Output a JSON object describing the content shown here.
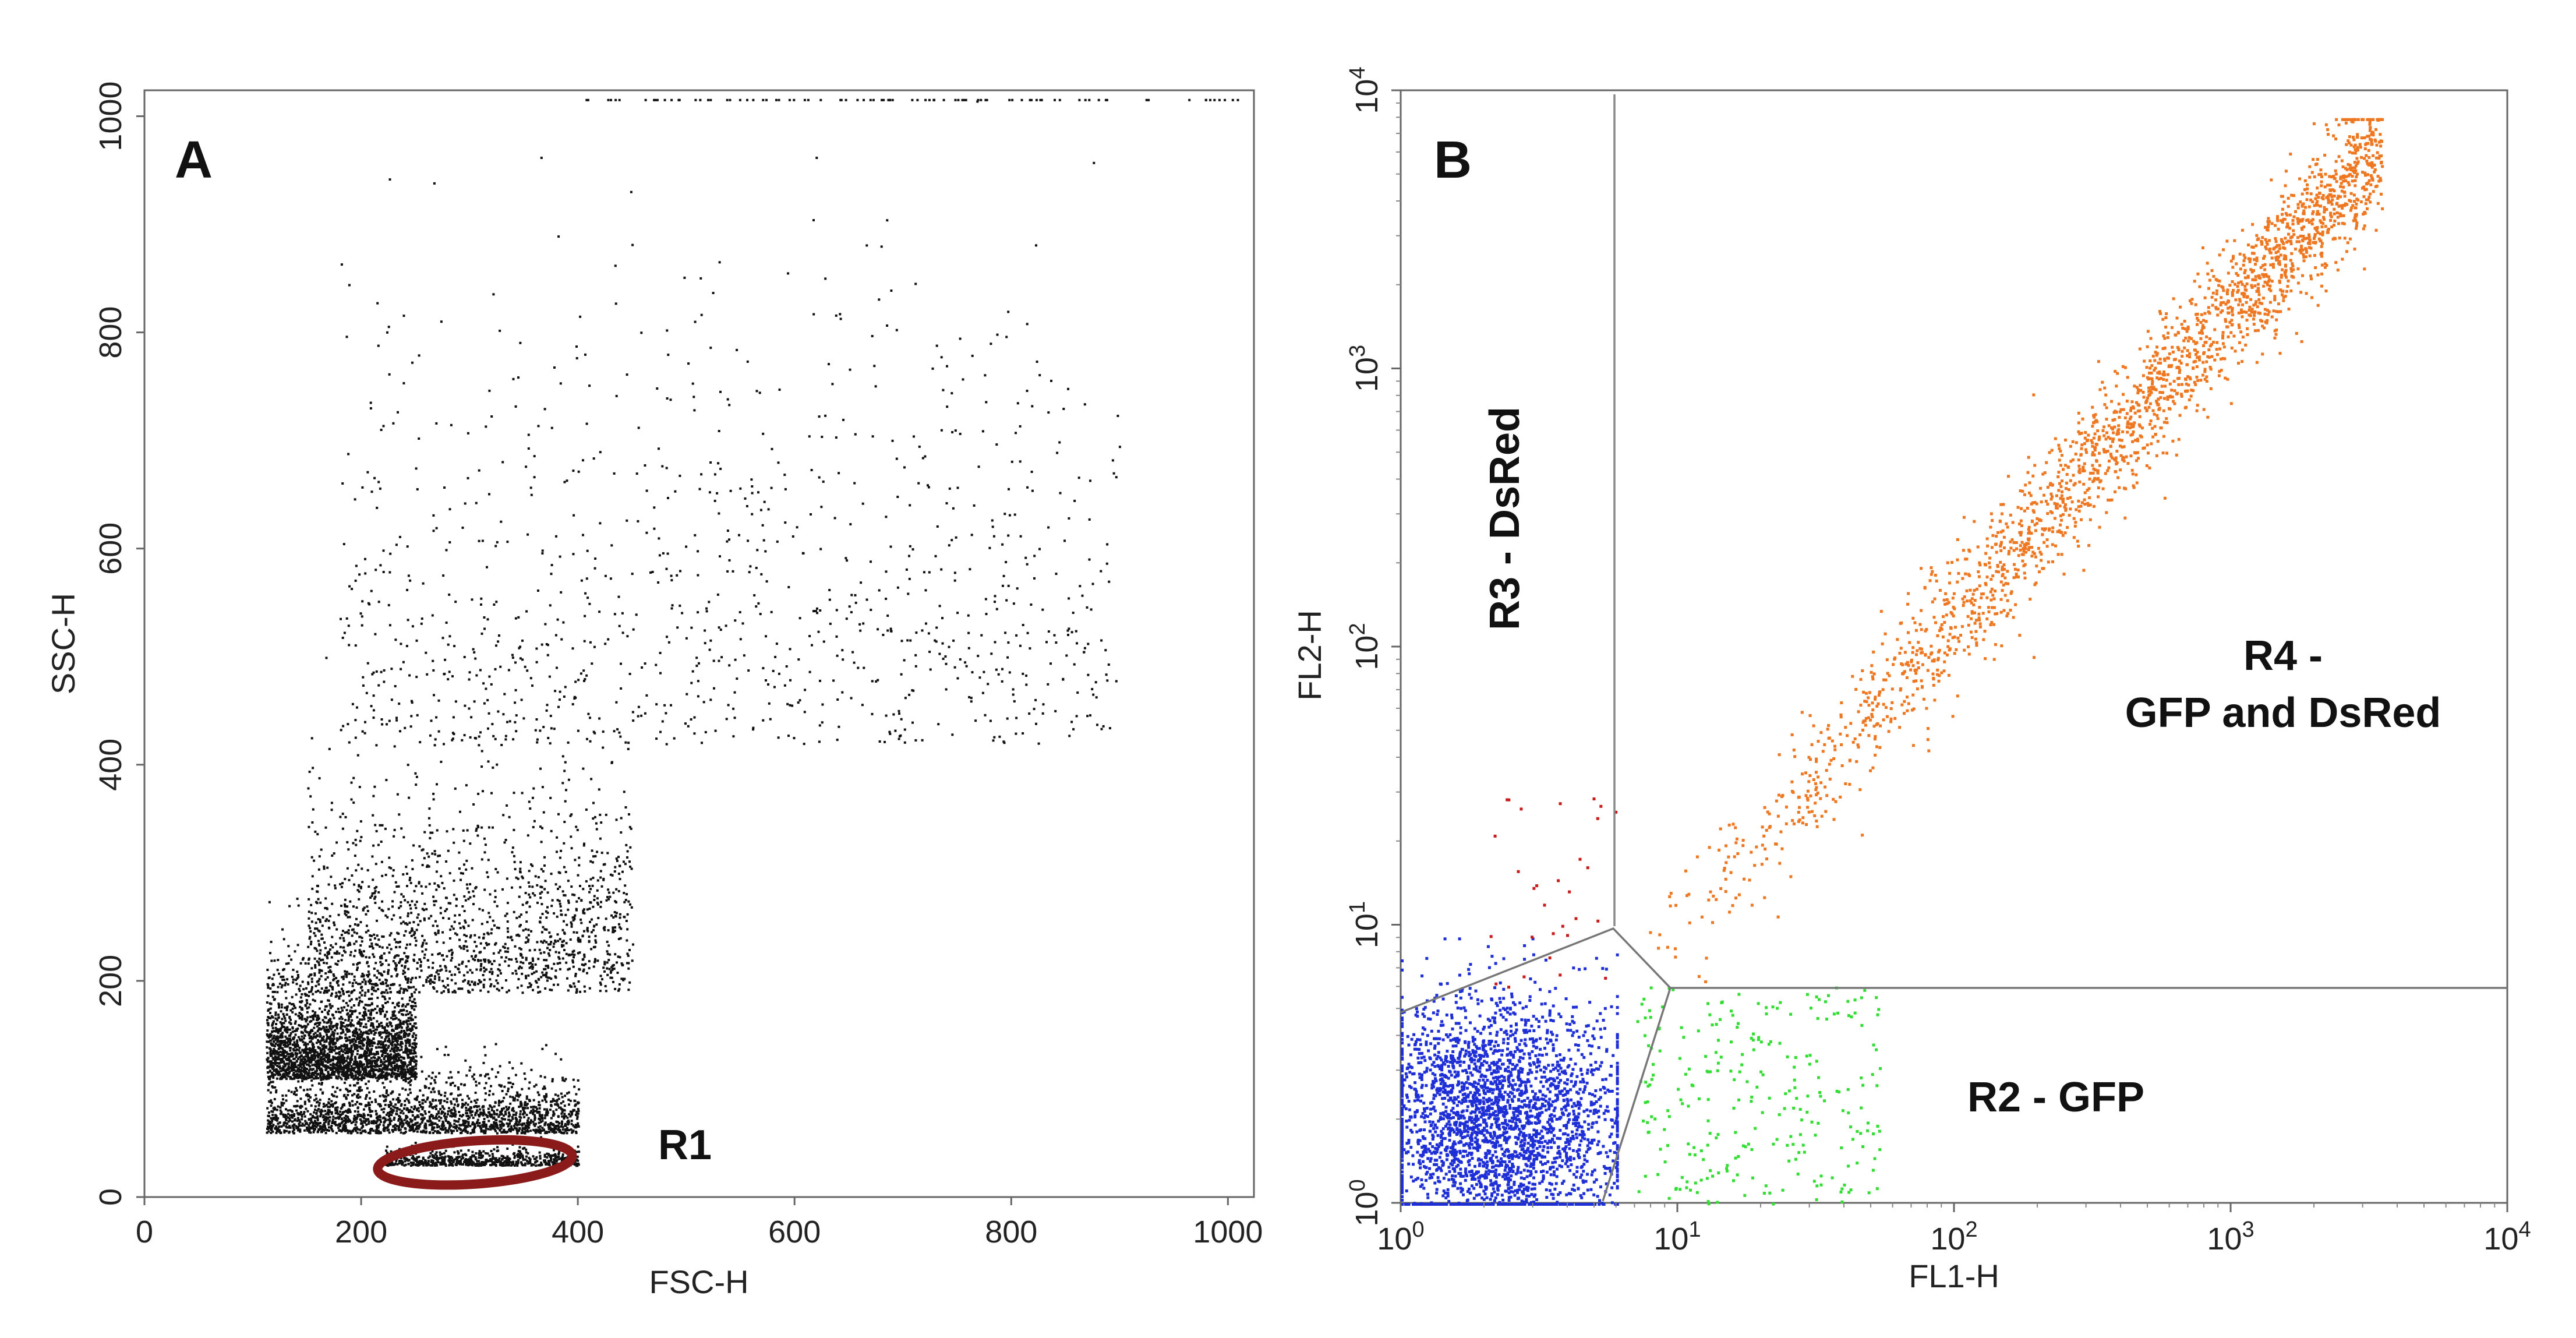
{
  "chart_data": [
    {
      "type": "scatter",
      "panel_label": "A",
      "title": "",
      "xlabel": "FSC-H",
      "ylabel": "SSC-H",
      "xlim": [
        0,
        1024
      ],
      "ylim": [
        0,
        1024
      ],
      "x_scale": "linear",
      "y_scale": "linear",
      "x_ticks": [
        "0",
        "200",
        "400",
        "600",
        "800",
        "1000"
      ],
      "y_ticks": [
        "0",
        "200",
        "400",
        "600",
        "800",
        "1000"
      ],
      "grid": false,
      "point_color": "#111111",
      "clusters": [
        {
          "x_range": [
            112,
            250
          ],
          "y_mean": 110,
          "y_sd": 55,
          "n": 2600
        },
        {
          "x_range": [
            112,
            400
          ],
          "y_mean": 60,
          "y_sd": 30,
          "n": 1900
        },
        {
          "x_range": [
            150,
            450
          ],
          "y_mean": 190,
          "y_sd": 110,
          "n": 1500
        },
        {
          "x_range": [
            180,
            900
          ],
          "y_mean": 420,
          "y_sd": 230,
          "n": 1000
        },
        {
          "x_range": [
            220,
            400
          ],
          "y_mean": 30,
          "y_sd": 8,
          "n": 650
        }
      ],
      "gates": [
        {
          "name": "R1",
          "shape": "ellipse",
          "center": [
            305,
            32
          ],
          "radii": [
            90,
            20
          ],
          "color": "#8b1a1a"
        }
      ]
    },
    {
      "type": "scatter",
      "panel_label": "B",
      "title": "",
      "xlabel": "FL1-H",
      "ylabel": "FL2-H",
      "xlim": [
        1,
        10000
      ],
      "ylim": [
        1,
        10000
      ],
      "x_scale": "log",
      "y_scale": "log",
      "x_ticks": [
        {
          "base": "10",
          "exp": "0"
        },
        {
          "base": "10",
          "exp": "1"
        },
        {
          "base": "10",
          "exp": "2"
        },
        {
          "base": "10",
          "exp": "3"
        },
        {
          "base": "10",
          "exp": "4"
        }
      ],
      "y_ticks": [
        {
          "base": "10",
          "exp": "0"
        },
        {
          "base": "10",
          "exp": "1"
        },
        {
          "base": "10",
          "exp": "2"
        },
        {
          "base": "10",
          "exp": "3"
        },
        {
          "base": "10",
          "exp": "4"
        }
      ],
      "grid": false,
      "populations": [
        {
          "region": "unlabelled",
          "color": "#1f2fd6",
          "x_range": [
            1,
            6
          ],
          "y_range": [
            1,
            9
          ],
          "n": 2800
        },
        {
          "region": "R2",
          "color": "#33dd33",
          "x_range": [
            7,
            55
          ],
          "y_range": [
            1,
            6
          ],
          "n": 260
        },
        {
          "region": "R3",
          "color": "#c81c1c",
          "x_range": [
            2,
            6
          ],
          "y_range": [
            6,
            30
          ],
          "n": 30
        },
        {
          "region": "R4",
          "color": "#ee7722",
          "x_range": [
            7,
            3500
          ],
          "y_range": [
            6,
            7000
          ],
          "n": 2200
        }
      ],
      "gates": [
        {
          "name": "R2",
          "label": "R2 - GFP"
        },
        {
          "name": "R3",
          "label": "R3 - DsRed"
        },
        {
          "name": "R4",
          "label_line1": "R4 -",
          "label_line2": "GFP and DsRed"
        }
      ]
    }
  ]
}
